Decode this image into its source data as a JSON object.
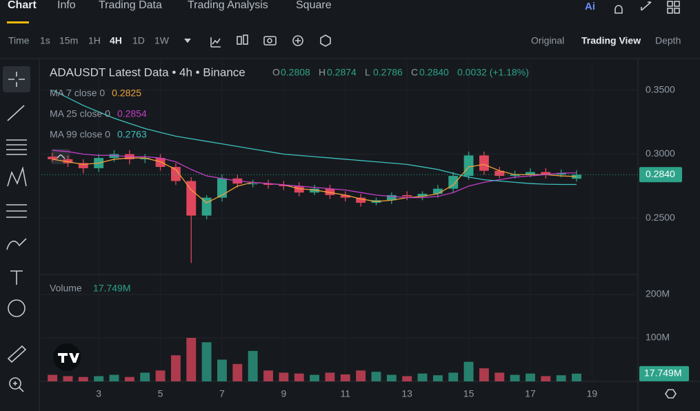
{
  "header": {
    "tabs": [
      "Chart",
      "Info",
      "Trading Data",
      "Trading Analysis",
      "Square"
    ],
    "ai_label": "Ai"
  },
  "toolbar": {
    "intervals": [
      "Time",
      "1s",
      "15m",
      "1H",
      "4H",
      "1D",
      "1W"
    ],
    "views": [
      "Original",
      "Trading View",
      "Depth"
    ]
  },
  "legend": {
    "symbol": "ADAUSDT Latest Data • 4h • Binance",
    "ohlc": [
      {
        "key": "O",
        "value": "0.2808"
      },
      {
        "key": "H",
        "value": "0.2874"
      },
      {
        "key": "L",
        "value": "0.2786"
      },
      {
        "key": "C",
        "value": "0.2840"
      }
    ],
    "change": "0.0032 (+1.18%)",
    "ma": [
      {
        "name": "MA 7 close 0",
        "value": "0.2825"
      },
      {
        "name": "MA 25 close 0",
        "value": "0.2854"
      },
      {
        "name": "MA 99 close 0",
        "value": "0.2763"
      }
    ],
    "volume_name": "Volume",
    "volume_value": "17.749M"
  },
  "chart_data": {
    "type": "candlestick",
    "x": [
      1.5,
      2,
      2.5,
      3,
      3.5,
      4,
      4.5,
      5,
      5.5,
      6,
      6.5,
      7,
      7.5,
      8,
      8.5,
      9,
      9.5,
      10,
      10.5,
      11,
      11.5,
      12,
      12.5,
      13,
      13.5,
      14,
      14.5,
      15,
      15.5,
      16,
      16.5,
      17,
      17.5,
      18,
      18.5
    ],
    "open": [
      0.298,
      0.296,
      0.293,
      0.289,
      0.297,
      0.3,
      0.296,
      0.297,
      0.29,
      0.279,
      0.252,
      0.266,
      0.281,
      0.277,
      0.277,
      0.276,
      0.275,
      0.27,
      0.273,
      0.268,
      0.266,
      0.262,
      0.264,
      0.268,
      0.267,
      0.269,
      0.273,
      0.283,
      0.299,
      0.287,
      0.283,
      0.284,
      0.286,
      0.284,
      0.2808
    ],
    "high": [
      0.301,
      0.299,
      0.296,
      0.3,
      0.303,
      0.303,
      0.3,
      0.3,
      0.293,
      0.282,
      0.268,
      0.284,
      0.284,
      0.28,
      0.28,
      0.279,
      0.278,
      0.276,
      0.276,
      0.271,
      0.269,
      0.266,
      0.27,
      0.271,
      0.271,
      0.276,
      0.286,
      0.302,
      0.302,
      0.29,
      0.287,
      0.289,
      0.289,
      0.288,
      0.2874
    ],
    "low": [
      0.294,
      0.29,
      0.285,
      0.286,
      0.294,
      0.292,
      0.293,
      0.287,
      0.276,
      0.215,
      0.249,
      0.263,
      0.274,
      0.274,
      0.273,
      0.272,
      0.267,
      0.268,
      0.265,
      0.263,
      0.259,
      0.26,
      0.261,
      0.264,
      0.264,
      0.266,
      0.27,
      0.28,
      0.284,
      0.281,
      0.281,
      0.282,
      0.281,
      0.282,
      0.2786
    ],
    "close": [
      0.296,
      0.293,
      0.289,
      0.297,
      0.3,
      0.296,
      0.297,
      0.29,
      0.279,
      0.252,
      0.266,
      0.281,
      0.277,
      0.277,
      0.276,
      0.275,
      0.27,
      0.273,
      0.268,
      0.266,
      0.262,
      0.264,
      0.268,
      0.267,
      0.269,
      0.273,
      0.283,
      0.299,
      0.287,
      0.283,
      0.284,
      0.286,
      0.284,
      0.285,
      0.284
    ],
    "volume": [
      15,
      12,
      10,
      12,
      15,
      10,
      20,
      25,
      60,
      100,
      90,
      50,
      40,
      70,
      25,
      20,
      18,
      15,
      20,
      16,
      25,
      22,
      15,
      12,
      18,
      14,
      20,
      45,
      30,
      20,
      15,
      18,
      12,
      14,
      17.749
    ],
    "ma": [
      {
        "color": "#f0a13a",
        "values": [
          0.296,
          0.294,
          0.292,
          0.293,
          0.296,
          0.297,
          0.297,
          0.294,
          0.288,
          0.272,
          0.262,
          0.268,
          0.275,
          0.278,
          0.277,
          0.276,
          0.273,
          0.272,
          0.27,
          0.268,
          0.265,
          0.263,
          0.264,
          0.266,
          0.267,
          0.269,
          0.276,
          0.29,
          0.292,
          0.287,
          0.284,
          0.284,
          0.284,
          0.283,
          0.2825
        ]
      },
      {
        "color": "#c33ec8",
        "values": [
          0.303,
          0.302,
          0.3,
          0.299,
          0.299,
          0.298,
          0.298,
          0.297,
          0.294,
          0.288,
          0.283,
          0.281,
          0.279,
          0.278,
          0.277,
          0.276,
          0.275,
          0.274,
          0.273,
          0.272,
          0.27,
          0.268,
          0.267,
          0.266,
          0.266,
          0.267,
          0.27,
          0.275,
          0.278,
          0.28,
          0.282,
          0.283,
          0.284,
          0.2852,
          0.2854
        ]
      },
      {
        "color": "#3fc1c0",
        "values": [
          0.35,
          0.344,
          0.338,
          0.333,
          0.328,
          0.324,
          0.32,
          0.317,
          0.314,
          0.312,
          0.31,
          0.308,
          0.306,
          0.304,
          0.302,
          0.3,
          0.299,
          0.298,
          0.297,
          0.296,
          0.295,
          0.294,
          0.293,
          0.292,
          0.29,
          0.288,
          0.285,
          0.282,
          0.28,
          0.279,
          0.278,
          0.277,
          0.2765,
          0.2763,
          0.2763
        ]
      }
    ],
    "up_color": "#2ea38a",
    "down_color": "#e0475d",
    "xlim": [
      1.14,
      20.49
    ],
    "xticks": [
      3,
      5,
      7,
      9,
      11,
      13,
      15,
      17,
      19
    ],
    "ylim": [
      0.206,
      0.373
    ],
    "yticks": [
      {
        "value": 0.35,
        "label": "0.3500"
      },
      {
        "value": 0.3,
        "label": "0.3000"
      },
      {
        "value": 0.25,
        "label": "0.2500"
      }
    ],
    "last_price": {
      "value": 0.284,
      "label": "0.2840"
    },
    "vlim": [
      0,
      246
    ],
    "vticks": [
      {
        "value": 200,
        "label": "200M"
      },
      {
        "value": 100,
        "label": "100M"
      }
    ],
    "last_volume": {
      "value": 17.749,
      "label": "17.749M"
    }
  }
}
